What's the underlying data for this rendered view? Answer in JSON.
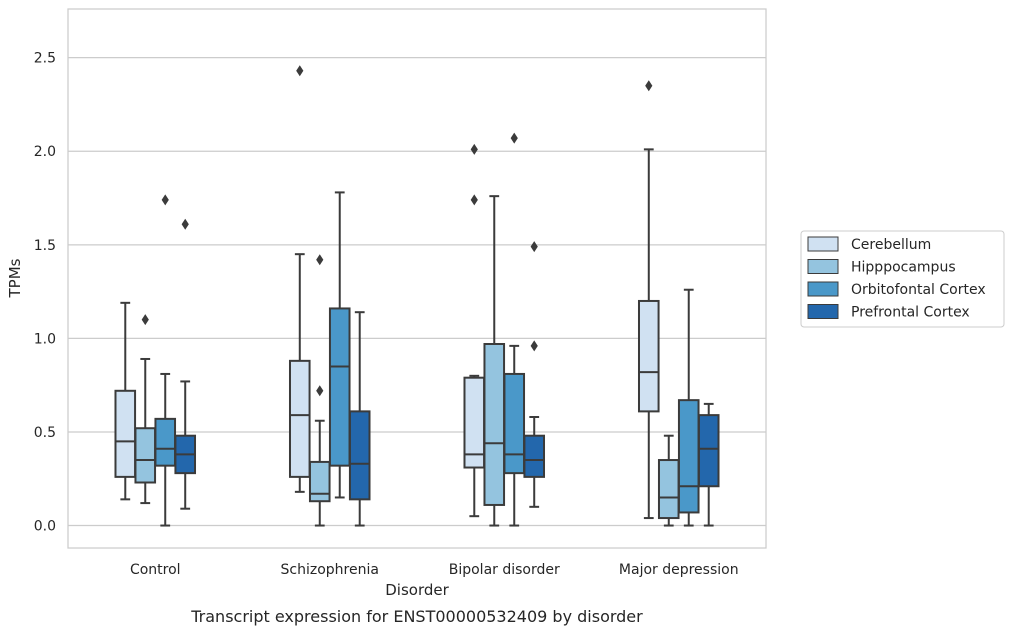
{
  "chart_data": {
    "type": "box",
    "xlabel": "Disorder",
    "ylabel": "TPMs",
    "caption": "Transcript expression for ENST00000532409 by disorder",
    "ylim": [
      -0.12,
      2.76
    ],
    "yticks": [
      "0.0",
      "0.5",
      "1.0",
      "1.5",
      "2.0",
      "2.5"
    ],
    "ytick_values": [
      0,
      0.5,
      1.0,
      1.5,
      2.0,
      2.5
    ],
    "grid": "horizontal",
    "legend_position": "right",
    "categories": [
      "Control",
      "Schizophrenia",
      "Bipolar disorder",
      "Major depression"
    ],
    "series": [
      {
        "name": "Cerebellum",
        "color": "#d0e1f2",
        "boxes": [
          {
            "whisker_low": 0.14,
            "q1": 0.26,
            "median": 0.45,
            "q3": 0.72,
            "whisker_high": 1.19,
            "outliers": []
          },
          {
            "whisker_low": 0.18,
            "q1": 0.26,
            "median": 0.59,
            "q3": 0.88,
            "whisker_high": 1.45,
            "outliers": [
              2.43
            ]
          },
          {
            "whisker_low": 0.05,
            "q1": 0.31,
            "median": 0.38,
            "q3": 0.79,
            "whisker_high": 0.8,
            "outliers": [
              1.74,
              2.01
            ]
          },
          {
            "whisker_low": 0.04,
            "q1": 0.61,
            "median": 0.82,
            "q3": 1.2,
            "whisker_high": 2.01,
            "outliers": [
              2.35
            ]
          }
        ]
      },
      {
        "name": "Hipppocampus",
        "color": "#94c4df",
        "boxes": [
          {
            "whisker_low": 0.12,
            "q1": 0.23,
            "median": 0.35,
            "q3": 0.52,
            "whisker_high": 0.89,
            "outliers": [
              1.1
            ]
          },
          {
            "whisker_low": 0.0,
            "q1": 0.13,
            "median": 0.17,
            "q3": 0.34,
            "whisker_high": 0.56,
            "outliers": [
              0.72,
              1.42
            ]
          },
          {
            "whisker_low": 0.0,
            "q1": 0.11,
            "median": 0.44,
            "q3": 0.97,
            "whisker_high": 1.76,
            "outliers": []
          },
          {
            "whisker_low": 0.0,
            "q1": 0.04,
            "median": 0.15,
            "q3": 0.35,
            "whisker_high": 0.48,
            "outliers": []
          }
        ]
      },
      {
        "name": "Orbitofontal Cortex",
        "color": "#4a98c9",
        "boxes": [
          {
            "whisker_low": 0.0,
            "q1": 0.32,
            "median": 0.41,
            "q3": 0.57,
            "whisker_high": 0.81,
            "outliers": [
              1.74
            ]
          },
          {
            "whisker_low": 0.15,
            "q1": 0.32,
            "median": 0.85,
            "q3": 1.16,
            "whisker_high": 1.78,
            "outliers": []
          },
          {
            "whisker_low": 0.0,
            "q1": 0.28,
            "median": 0.38,
            "q3": 0.81,
            "whisker_high": 0.96,
            "outliers": [
              2.07
            ]
          },
          {
            "whisker_low": 0.0,
            "q1": 0.07,
            "median": 0.21,
            "q3": 0.67,
            "whisker_high": 1.26,
            "outliers": []
          }
        ]
      },
      {
        "name": "Prefrontal Cortex",
        "color": "#2367ac",
        "boxes": [
          {
            "whisker_low": 0.09,
            "q1": 0.28,
            "median": 0.38,
            "q3": 0.48,
            "whisker_high": 0.77,
            "outliers": [
              1.61
            ]
          },
          {
            "whisker_low": 0.0,
            "q1": 0.14,
            "median": 0.33,
            "q3": 0.61,
            "whisker_high": 1.14,
            "outliers": []
          },
          {
            "whisker_low": 0.1,
            "q1": 0.26,
            "median": 0.35,
            "q3": 0.48,
            "whisker_high": 0.58,
            "outliers": [
              0.96,
              1.49
            ]
          },
          {
            "whisker_low": 0.0,
            "q1": 0.21,
            "median": 0.41,
            "q3": 0.59,
            "whisker_high": 0.65,
            "outliers": []
          }
        ]
      }
    ]
  }
}
